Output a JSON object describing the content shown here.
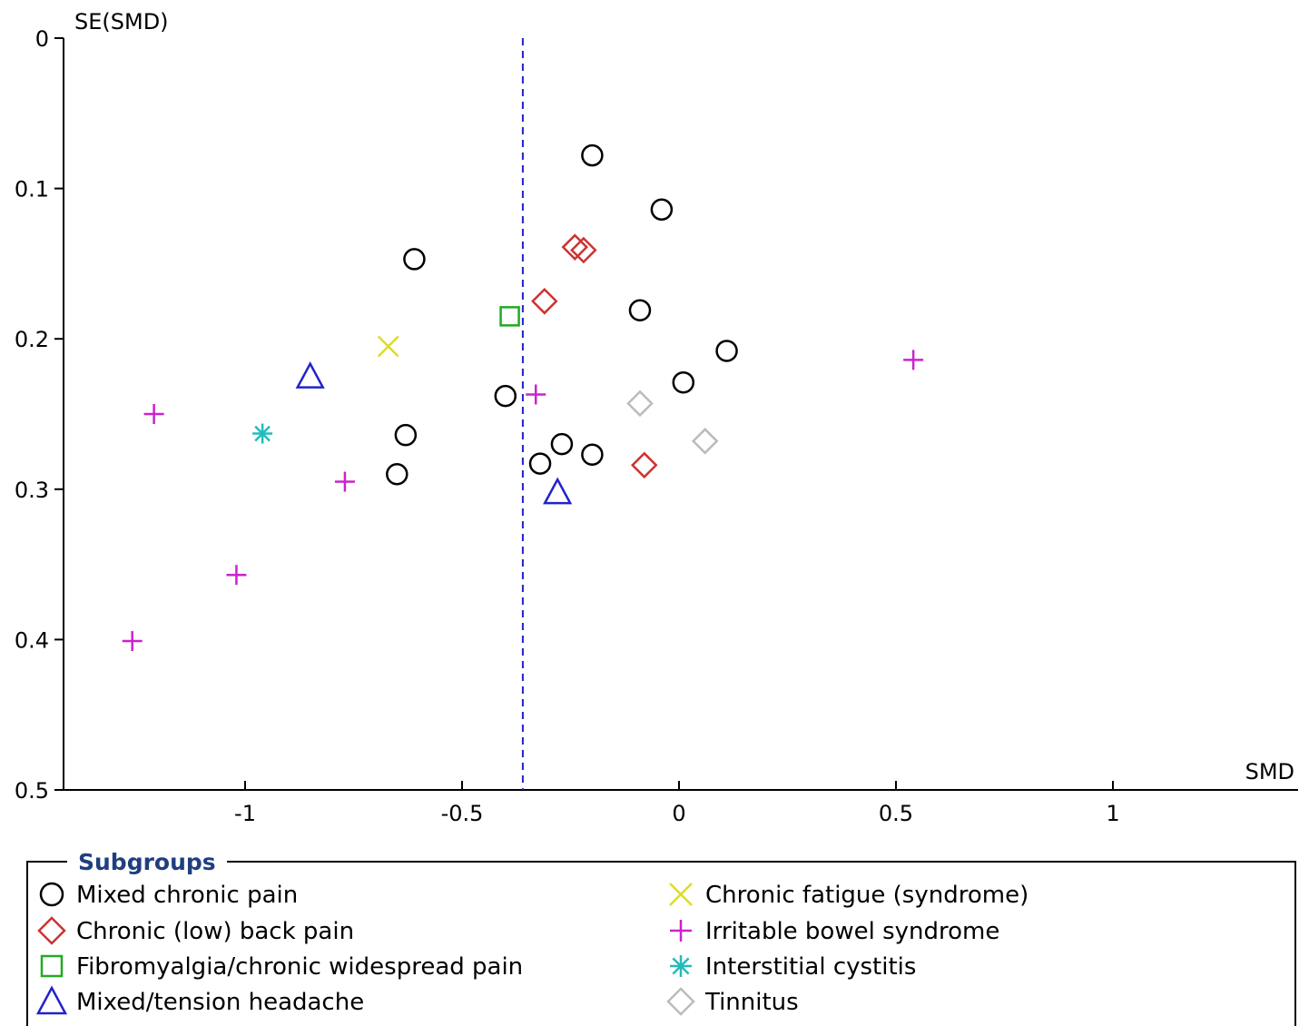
{
  "chart_data": {
    "type": "scatter",
    "title": "",
    "xlabel": "SMD",
    "ylabel": "SE(SMD)",
    "xlim": [
      -1.4,
      1.4
    ],
    "ylim": [
      0,
      0.5
    ],
    "y_inverted": true,
    "x_ticks": [
      -1,
      -0.5,
      0,
      0.5,
      1
    ],
    "x_tick_labels": [
      "-1",
      "-0.5",
      "0",
      "0.5",
      "1"
    ],
    "y_ticks": [
      0,
      0.1,
      0.2,
      0.3,
      0.4,
      0.5
    ],
    "y_tick_labels": [
      "0",
      "0.1",
      "0.2",
      "0.3",
      "0.4",
      "0.5"
    ],
    "pooled_estimate_line": -0.36,
    "grid": false,
    "legend_title": "Subgroups",
    "legend_placement": "bottom",
    "series": [
      {
        "name": "Mixed chronic pain",
        "marker": "circle",
        "color": "#000000",
        "points": [
          {
            "x": -0.2,
            "y": 0.078
          },
          {
            "x": -0.04,
            "y": 0.114
          },
          {
            "x": -0.61,
            "y": 0.147
          },
          {
            "x": -0.09,
            "y": 0.181
          },
          {
            "x": 0.11,
            "y": 0.208
          },
          {
            "x": 0.01,
            "y": 0.229
          },
          {
            "x": -0.4,
            "y": 0.238
          },
          {
            "x": -0.63,
            "y": 0.264
          },
          {
            "x": -0.27,
            "y": 0.27
          },
          {
            "x": -0.2,
            "y": 0.277
          },
          {
            "x": -0.32,
            "y": 0.283
          },
          {
            "x": -0.65,
            "y": 0.29
          }
        ]
      },
      {
        "name": "Chronic (low) back pain",
        "marker": "diamond",
        "color": "#cc3333",
        "points": [
          {
            "x": -0.24,
            "y": 0.139
          },
          {
            "x": -0.22,
            "y": 0.141
          },
          {
            "x": -0.31,
            "y": 0.175
          },
          {
            "x": -0.08,
            "y": 0.284
          }
        ]
      },
      {
        "name": "Fibromyalgia/chronic widespread pain",
        "marker": "square",
        "color": "#22aa22",
        "points": [
          {
            "x": -0.39,
            "y": 0.185
          }
        ]
      },
      {
        "name": "Mixed/tension headache",
        "marker": "triangle",
        "color": "#2222cc",
        "points": [
          {
            "x": -0.85,
            "y": 0.225
          },
          {
            "x": -0.28,
            "y": 0.302
          }
        ]
      },
      {
        "name": "Chronic fatigue (syndrome)",
        "marker": "x",
        "color": "#dddd22",
        "points": [
          {
            "x": -0.67,
            "y": 0.205
          }
        ]
      },
      {
        "name": "Irritable bowel syndrome",
        "marker": "plus",
        "color": "#cc22cc",
        "points": [
          {
            "x": 0.54,
            "y": 0.214
          },
          {
            "x": -0.33,
            "y": 0.237
          },
          {
            "x": -1.21,
            "y": 0.25
          },
          {
            "x": -0.77,
            "y": 0.295
          },
          {
            "x": -1.02,
            "y": 0.357
          },
          {
            "x": -1.26,
            "y": 0.401
          }
        ]
      },
      {
        "name": "Interstitial cystitis",
        "marker": "asterisk",
        "color": "#22bbbb",
        "points": [
          {
            "x": -0.96,
            "y": 0.263
          }
        ]
      },
      {
        "name": "Tinnitus",
        "marker": "diamond",
        "color": "#bbbbbb",
        "points": [
          {
            "x": -0.09,
            "y": 0.243
          },
          {
            "x": 0.06,
            "y": 0.268
          }
        ]
      }
    ]
  }
}
